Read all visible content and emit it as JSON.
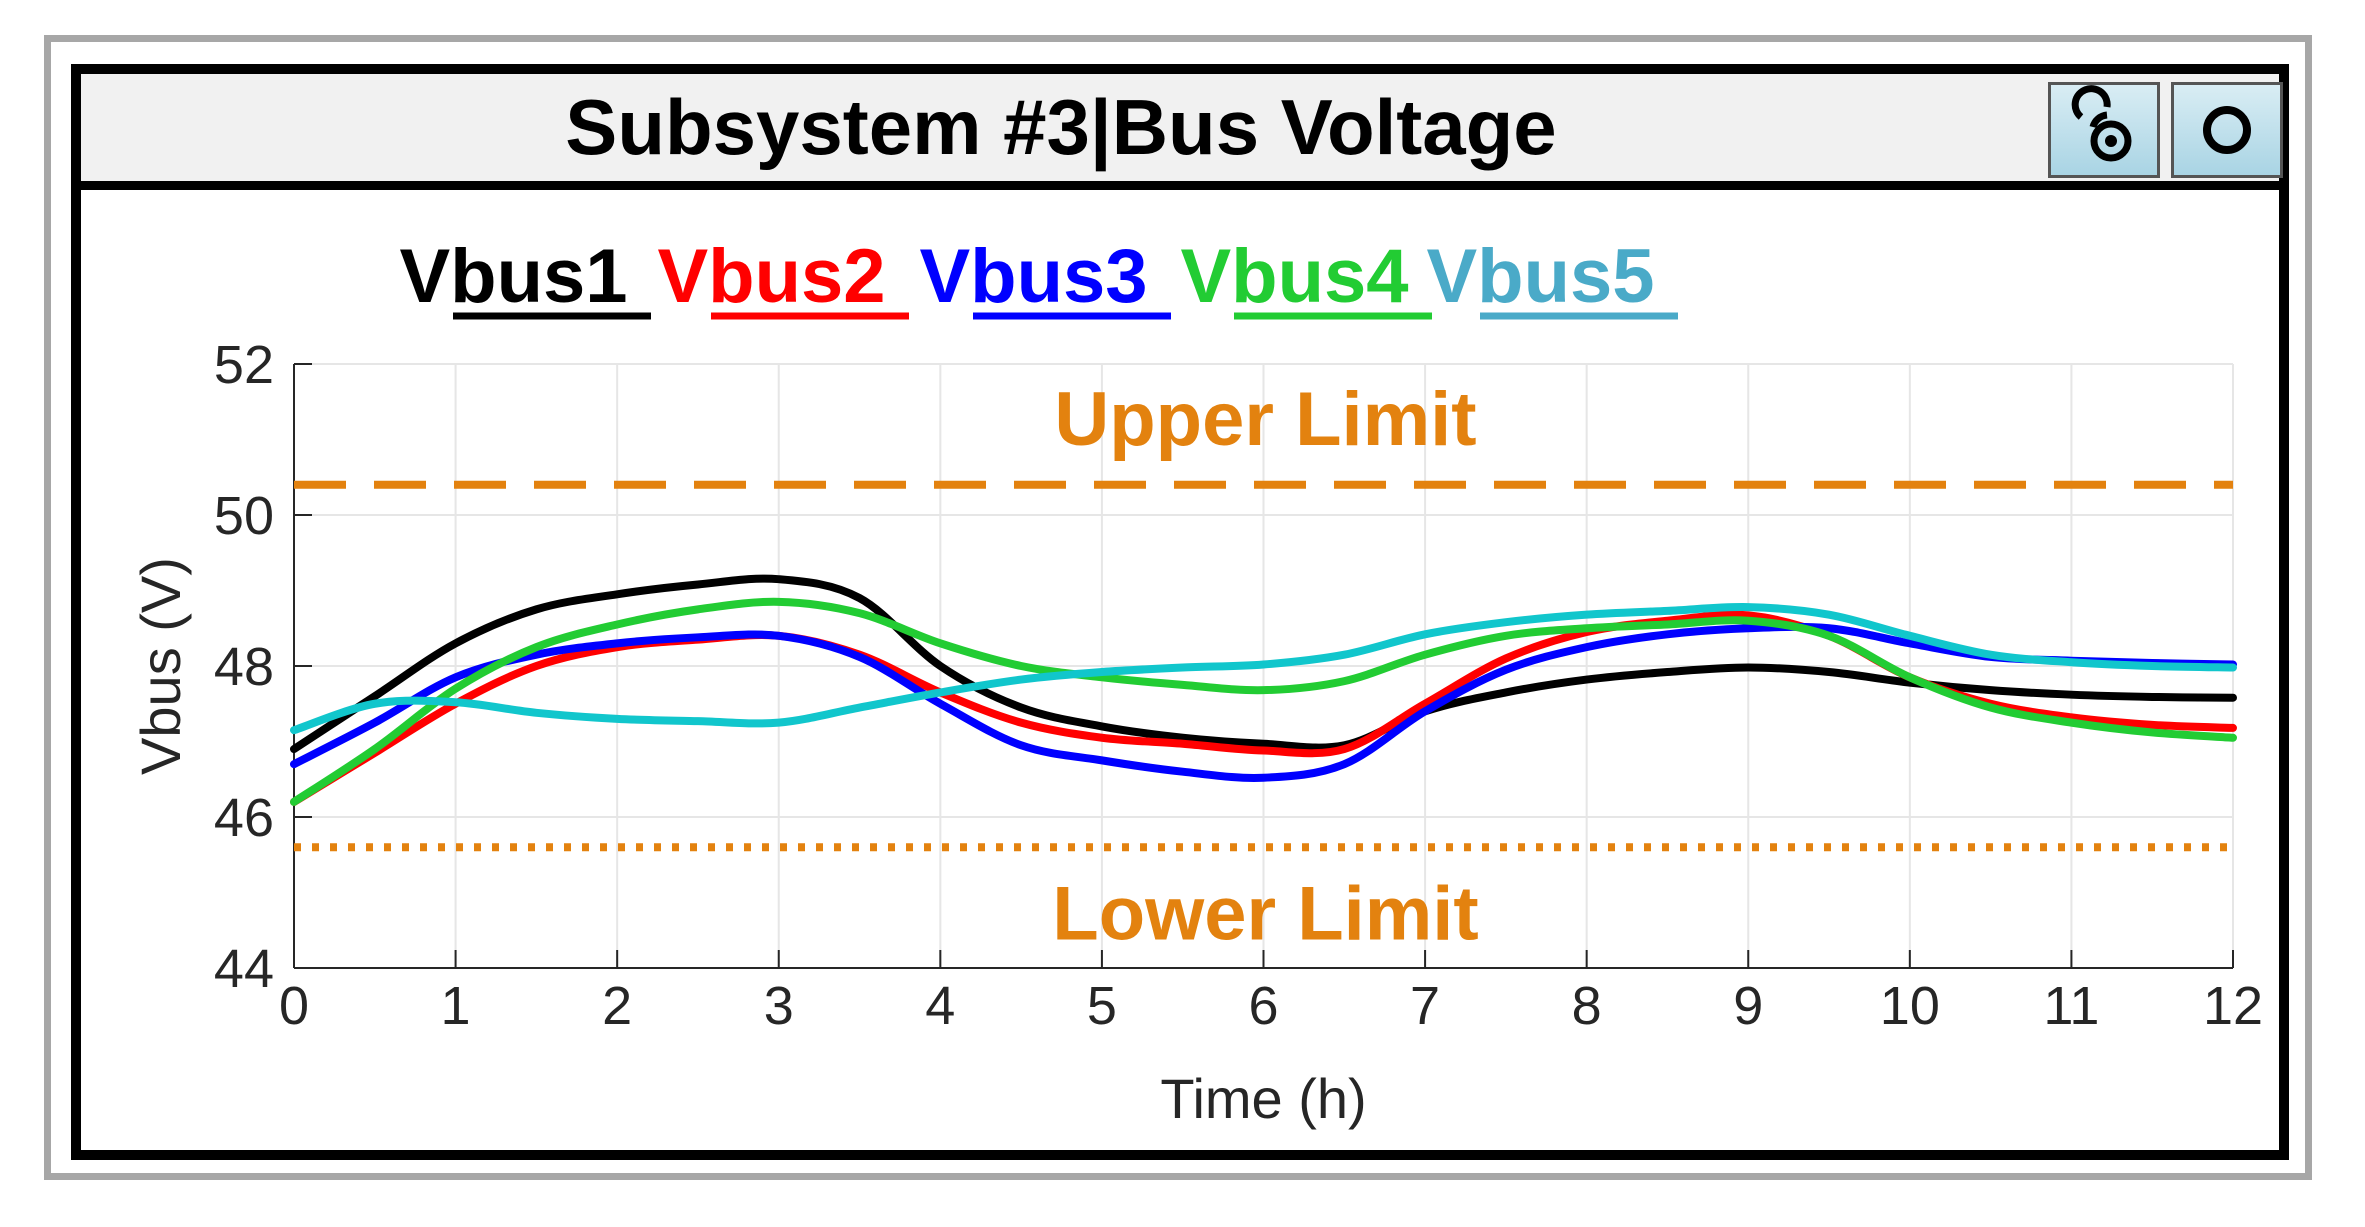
{
  "window": {
    "title": "Subsystem #3|Bus Voltage",
    "buttons": [
      {
        "name": "link-icon",
        "label": ""
      },
      {
        "name": "circle-icon",
        "label": ""
      }
    ]
  },
  "chart_data": {
    "type": "line",
    "xlabel": "Time (h)",
    "ylabel": "Vbus (V)",
    "xlim": [
      0,
      12
    ],
    "ylim": [
      44,
      52
    ],
    "xticks": [
      0,
      1,
      2,
      3,
      4,
      5,
      6,
      7,
      8,
      9,
      10,
      11,
      12
    ],
    "yticks": [
      44,
      46,
      48,
      50,
      52
    ],
    "grid": true,
    "legend_position": "top",
    "x": [
      0,
      0.5,
      1,
      1.5,
      2,
      2.5,
      3,
      3.5,
      4,
      4.5,
      5,
      5.5,
      6,
      6.5,
      7,
      7.5,
      8,
      8.5,
      9,
      9.5,
      10,
      10.5,
      11,
      11.5,
      12
    ],
    "series": [
      {
        "name": "Vbus1",
        "color": "#000000",
        "values": [
          46.9,
          47.6,
          48.3,
          48.75,
          48.95,
          49.08,
          49.15,
          48.9,
          48.0,
          47.45,
          47.2,
          47.05,
          46.97,
          46.95,
          47.4,
          47.65,
          47.82,
          47.92,
          47.98,
          47.92,
          47.78,
          47.68,
          47.62,
          47.59,
          47.58
        ]
      },
      {
        "name": "Vbus2",
        "color": "#ff0000",
        "values": [
          46.2,
          46.85,
          47.5,
          48.0,
          48.25,
          48.35,
          48.4,
          48.15,
          47.65,
          47.25,
          47.05,
          46.97,
          46.88,
          46.9,
          47.5,
          48.1,
          48.45,
          48.6,
          48.67,
          48.4,
          47.85,
          47.5,
          47.32,
          47.22,
          47.18
        ]
      },
      {
        "name": "Vbus3",
        "color": "#0000ff",
        "values": [
          46.7,
          47.25,
          47.85,
          48.15,
          48.3,
          48.38,
          48.4,
          48.12,
          47.5,
          46.95,
          46.75,
          46.6,
          46.52,
          46.7,
          47.4,
          47.95,
          48.25,
          48.42,
          48.5,
          48.5,
          48.3,
          48.12,
          48.07,
          48.04,
          48.02
        ]
      },
      {
        "name": "Vbus4",
        "color": "#22cc33",
        "values": [
          46.2,
          46.9,
          47.7,
          48.25,
          48.55,
          48.75,
          48.85,
          48.7,
          48.3,
          48.0,
          47.85,
          47.75,
          47.68,
          47.8,
          48.15,
          48.4,
          48.5,
          48.55,
          48.6,
          48.4,
          47.85,
          47.45,
          47.25,
          47.12,
          47.05
        ]
      },
      {
        "name": "Vbus5",
        "color": "#11c6cc",
        "values": [
          47.15,
          47.5,
          47.52,
          47.38,
          47.3,
          47.27,
          47.25,
          47.45,
          47.65,
          47.82,
          47.92,
          47.98,
          48.02,
          48.15,
          48.42,
          48.58,
          48.68,
          48.73,
          48.78,
          48.68,
          48.4,
          48.15,
          48.05,
          48.0,
          47.98
        ]
      }
    ],
    "legend_colors": [
      "#000000",
      "#ff0000",
      "#0000ff",
      "#22cc33",
      "#4aaac8"
    ],
    "reference_lines": [
      {
        "label": "Upper Limit",
        "y": 50.4,
        "style": "dashed",
        "color": "#e3820f",
        "label_y": 51.3
      },
      {
        "label": "Lower Limit",
        "y": 45.6,
        "style": "dotted",
        "color": "#e3820f",
        "label_y": 44.75
      }
    ]
  }
}
